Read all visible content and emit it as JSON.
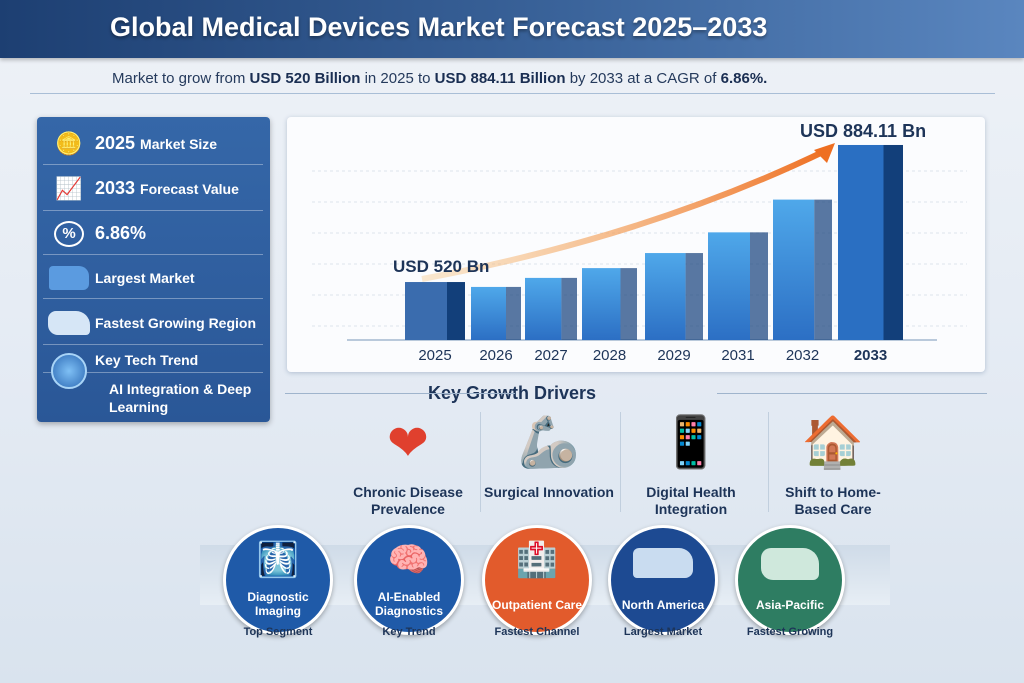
{
  "header": {
    "title": "Global Medical Devices Market Forecast 2025–2033"
  },
  "subtitle": {
    "p1": "Market to grow from ",
    "v1": "USD 520 Billion",
    "p2": " in 2025 to ",
    "v2": "USD 884.11 Billion",
    "p3": " by 2033 at a CAGR of ",
    "v3": "6.86%."
  },
  "left_panel": {
    "rows": [
      {
        "icon": "coins-icon",
        "strong": "2025",
        "label": "Market Size"
      },
      {
        "icon": "growth-chart-icon",
        "strong": "2033",
        "label": "Forecast Value"
      },
      {
        "icon": "percent-icon",
        "strong": "6.86%",
        "label": ""
      },
      {
        "icon": "usa-map-icon",
        "strong": "",
        "label": "Largest Market"
      },
      {
        "icon": "asia-map-icon",
        "strong": "",
        "label": "Fastest Growing Region"
      },
      {
        "icon": "ai-chip-icon",
        "strong": "",
        "label": "Key Tech Trend"
      }
    ],
    "tech_trend": "AI Integration & Deep Learning"
  },
  "chart_data": {
    "type": "bar",
    "title": "",
    "categories": [
      "2025",
      "2026",
      "2027",
      "2028",
      "2029",
      "2031",
      "2032",
      "2033"
    ],
    "values": [
      520,
      507,
      531,
      557,
      597,
      652,
      739,
      884.11
    ],
    "annotations": {
      "start": "USD 520 Bn",
      "end": "USD 884.11 Bn"
    },
    "xlabel": "",
    "ylabel": "",
    "ylim": [
      366,
      900
    ],
    "grid": true,
    "colors": {
      "bar": "#2f7fd0",
      "bar_dark": "#123f7a",
      "arrow": "#f07a2a"
    }
  },
  "drivers": {
    "title": "Key Growth Drivers",
    "items": [
      {
        "icon": "heart-pulse-icon",
        "label1": "Chronic Disease",
        "label2": "Prevalence"
      },
      {
        "icon": "surgical-robot-icon",
        "label1": "Surgical Innovation",
        "label2": ""
      },
      {
        "icon": "smartphone-health-icon",
        "label1": "Digital Health",
        "label2": "Integration"
      },
      {
        "icon": "home-care-icon",
        "label1": "Shift to Home-",
        "label2": "Based Care"
      }
    ]
  },
  "highlights": [
    {
      "icon": "mri-scanner-icon",
      "label": "Diagnostic Imaging",
      "sub": "Top Segment",
      "color": "#1f5aa8"
    },
    {
      "icon": "ai-brain-icon",
      "label": "AI-Enabled Diagnostics",
      "sub": "Key Trend",
      "color": "#1f5aa8"
    },
    {
      "icon": "hospital-icon",
      "label": "Outpatient Care",
      "sub": "Fastest Channel",
      "color": "#e25b2c"
    },
    {
      "icon": "north-america-map-icon",
      "label": "North America",
      "sub": "Largest Market",
      "color": "#1d4a92"
    },
    {
      "icon": "asia-pacific-map-icon",
      "label": "Asia-Pacific",
      "sub": "Fastest Growing",
      "color": "#2e7d62"
    }
  ]
}
